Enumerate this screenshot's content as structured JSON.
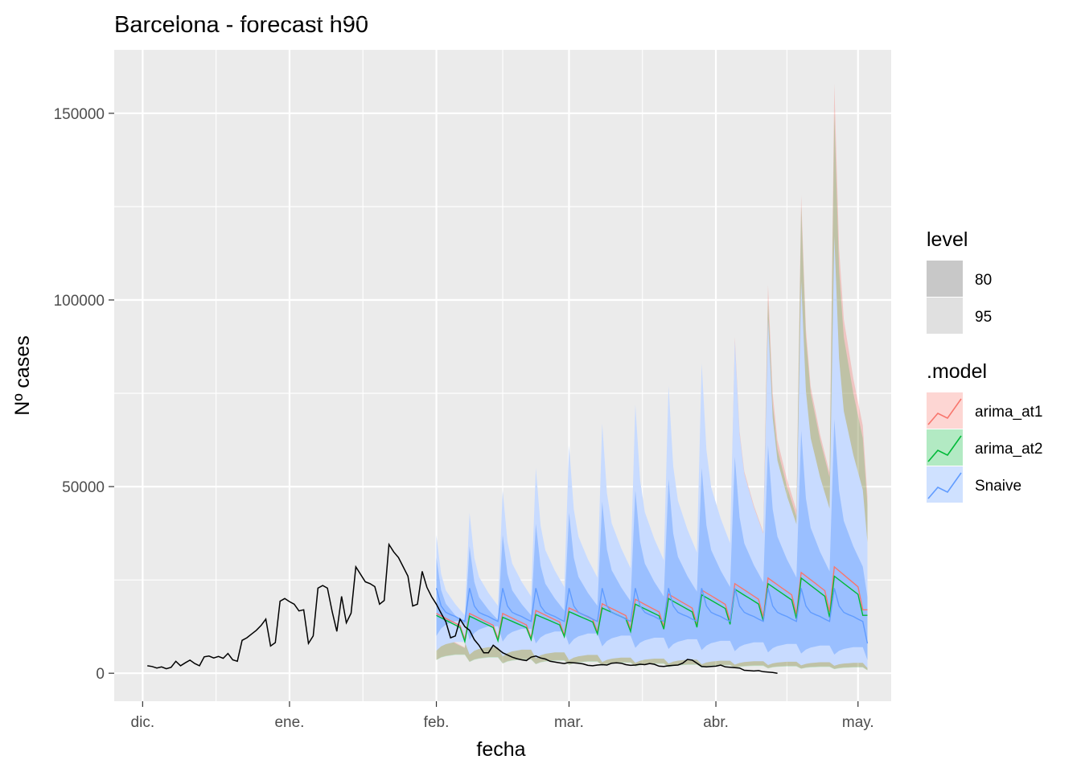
{
  "chart_data": {
    "type": "area",
    "title": "Barcelona - forecast h90",
    "xlabel": "fecha",
    "ylabel": "Nº cases",
    "x_ticks": [
      {
        "date": "2020-12-01",
        "label": "dic."
      },
      {
        "date": "2021-01-01",
        "label": "ene."
      },
      {
        "date": "2021-02-01",
        "label": "feb."
      },
      {
        "date": "2021-03-01",
        "label": "mar."
      },
      {
        "date": "2021-04-01",
        "label": "abr."
      },
      {
        "date": "2021-05-01",
        "label": "may."
      }
    ],
    "xlim": [
      "2020-11-25",
      "2021-05-08"
    ],
    "y_ticks": [
      0,
      50000,
      100000,
      150000
    ],
    "y_tick_labels": [
      "0",
      "50000",
      "100000",
      "150000"
    ],
    "ylim": [
      -7500,
      167000
    ],
    "grid": true,
    "legend_position": "right",
    "legends": [
      {
        "title": "level",
        "entries": [
          {
            "label": "80",
            "color": "#c8c8c8"
          },
          {
            "label": "95",
            "color": "#e0e0e0"
          }
        ]
      },
      {
        "title": ".model",
        "entries": [
          {
            "label": "arima_at1",
            "color": "#F8766D"
          },
          {
            "label": "arima_at2",
            "color": "#00BA38"
          },
          {
            "label": "Snaive",
            "color": "#619CFF"
          }
        ]
      }
    ],
    "observed": {
      "start": "2020-12-02",
      "values": [
        2000,
        1800,
        1400,
        1700,
        1200,
        1600,
        3200,
        2000,
        2800,
        3500,
        2600,
        2000,
        4400,
        4600,
        4100,
        4500,
        4000,
        5300,
        3600,
        3200,
        8800,
        9500,
        10500,
        11500,
        12800,
        14500,
        7300,
        8200,
        19300,
        20000,
        19200,
        18500,
        16700,
        17000,
        8000,
        10000,
        22800,
        23500,
        22800,
        16500,
        11200,
        20600,
        13500,
        16100,
        28500,
        26500,
        24500,
        24000,
        23200,
        18500,
        19500,
        34500,
        32500,
        31000,
        28500,
        26000,
        18000,
        18500,
        27300,
        23000,
        20500,
        18500,
        16100,
        13800,
        9500,
        10000,
        14500,
        12500,
        11500,
        9000,
        7500,
        5500,
        5500,
        7500,
        6500,
        5500,
        4900,
        4300,
        3900,
        3600,
        3400,
        4300,
        4600,
        4100,
        3800,
        3200,
        3000,
        2800,
        2600,
        2900,
        2800,
        2700,
        2500,
        2100,
        2000,
        2200,
        2300,
        2200,
        2700,
        2800,
        2700,
        2300,
        2100,
        2200,
        2400,
        2300,
        2600,
        2400,
        1900,
        1800,
        2000,
        2100,
        2200,
        2700,
        3700,
        3500,
        2700,
        1800,
        1700,
        1800,
        1900,
        2200,
        1700,
        1600,
        1500,
        1400,
        800,
        700,
        600,
        700,
        400,
        300,
        200,
        0
      ]
    },
    "forecast": {
      "start": "2021-02-01",
      "weeks": 13,
      "models": [
        {
          "name": "Snaive",
          "color": "#619CFF",
          "weekly_pattern": [
            22800,
            18000,
            16300,
            15700,
            15200,
            14500,
            13900,
            8000
          ],
          "lo95": [
            6000,
            5000,
            4500,
            4000,
            3500,
            3000,
            2800,
            2600,
            2400,
            2300,
            2200,
            2100,
            2000
          ],
          "lo80": [
            10000,
            9000,
            8500,
            8000,
            7600,
            7200,
            6800,
            6500,
            6200,
            5900,
            5600,
            5300,
            5000
          ],
          "hi80": [
            31000,
            34000,
            37000,
            40000,
            43000,
            46000,
            49000,
            52000,
            55000,
            58000,
            61000,
            65000,
            68000
          ],
          "hi95": [
            37000,
            43000,
            49000,
            55000,
            61000,
            67000,
            72000,
            77000,
            83000,
            89000,
            95000,
            105000,
            117000
          ]
        },
        {
          "name": "arima_at2",
          "color": "#00BA38",
          "weekly_peak": [
            15500,
            15300,
            15000,
            15700,
            16500,
            17500,
            18500,
            20000,
            21000,
            22500,
            24000,
            25500,
            26000
          ],
          "weekly_trough": [
            8500,
            8700,
            9000,
            9800,
            10500,
            11200,
            11800,
            12300,
            13100,
            14000,
            14600,
            15000,
            15500
          ],
          "lo95": [
            3500,
            3000,
            2600,
            2400,
            2200,
            2000,
            1800,
            1600,
            1500,
            1400,
            1300,
            1200,
            1100
          ],
          "hi95": [
            16000,
            18000,
            21000,
            25000,
            29000,
            35000,
            43000,
            55000,
            67000,
            85000,
            100000,
            125000,
            150000
          ]
        },
        {
          "name": "arima_at1",
          "color": "#F8766D",
          "weekly_peak": [
            16000,
            16000,
            16000,
            16800,
            17500,
            18600,
            19800,
            21200,
            22300,
            24000,
            25500,
            27000,
            28500
          ],
          "weekly_trough": [
            9000,
            9200,
            9400,
            10200,
            11000,
            11800,
            12500,
            13100,
            14000,
            15000,
            15800,
            16500,
            17000
          ],
          "lo95": [
            3600,
            3100,
            2700,
            2500,
            2300,
            2100,
            1900,
            1700,
            1600,
            1500,
            1400,
            1300,
            1200
          ],
          "hi95": [
            16500,
            19000,
            22000,
            26000,
            31000,
            38000,
            46000,
            58000,
            74000,
            90000,
            104000,
            128000,
            158000
          ]
        }
      ]
    }
  }
}
